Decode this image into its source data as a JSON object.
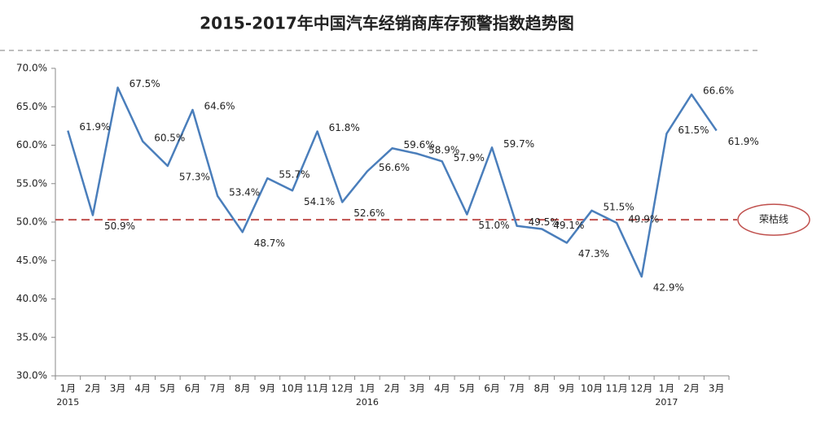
{
  "chart_data": {
    "type": "line",
    "title": "2015-2017年中国汽车经销商库存预警指数趋势图",
    "categories": [
      "1月",
      "2月",
      "3月",
      "4月",
      "5月",
      "6月",
      "7月",
      "8月",
      "9月",
      "10月",
      "11月",
      "12月",
      "1月",
      "2月",
      "3月",
      "4月",
      "5月",
      "6月",
      "7月",
      "8月",
      "9月",
      "10月",
      "11月",
      "12月",
      "1月",
      "2月",
      "3月"
    ],
    "category_years": [
      "2015",
      null,
      null,
      null,
      null,
      null,
      null,
      null,
      null,
      null,
      null,
      null,
      "2016",
      null,
      null,
      null,
      null,
      null,
      null,
      null,
      null,
      null,
      null,
      null,
      "2017",
      null,
      null
    ],
    "series": [
      {
        "color": "#4a7ebb",
        "values": [
          61.9,
          50.9,
          67.5,
          60.5,
          57.3,
          64.6,
          53.4,
          48.7,
          55.7,
          54.1,
          61.8,
          52.6,
          56.6,
          59.6,
          58.9,
          57.9,
          51.0,
          59.7,
          49.5,
          49.1,
          47.3,
          51.5,
          49.9,
          42.9,
          61.5,
          66.6,
          61.9
        ],
        "value_labels": [
          "61.9%",
          "50.9%",
          "67.5%",
          "60.5%",
          "57.3%",
          "64.6%",
          "53.4%",
          "48.7%",
          "55.7%",
          "54.1%",
          "61.8%",
          "52.6%",
          "56.6%",
          "59.6%",
          "58.9%",
          "57.9%",
          "51.0%",
          "59.7%",
          "49.5%",
          "49.1%",
          "47.3%",
          "51.5%",
          "49.9%",
          "42.9%",
          "61.5%",
          "66.6%",
          "61.9%"
        ]
      }
    ],
    "ylim": [
      30,
      70
    ],
    "yticks": [
      {
        "value": 30,
        "label": "30.0%"
      },
      {
        "value": 35,
        "label": "35.0%"
      },
      {
        "value": 40,
        "label": "40.0%"
      },
      {
        "value": 45,
        "label": "45.0%"
      },
      {
        "value": 50,
        "label": "50.0%"
      },
      {
        "value": 55,
        "label": "55.0%"
      },
      {
        "value": 60,
        "label": "60.0%"
      },
      {
        "value": 65,
        "label": "65.0%"
      },
      {
        "value": 70,
        "label": "70.0%"
      }
    ],
    "reference_line": {
      "value": 50.3,
      "label": "荣枯线",
      "color": "#c0504d"
    }
  }
}
